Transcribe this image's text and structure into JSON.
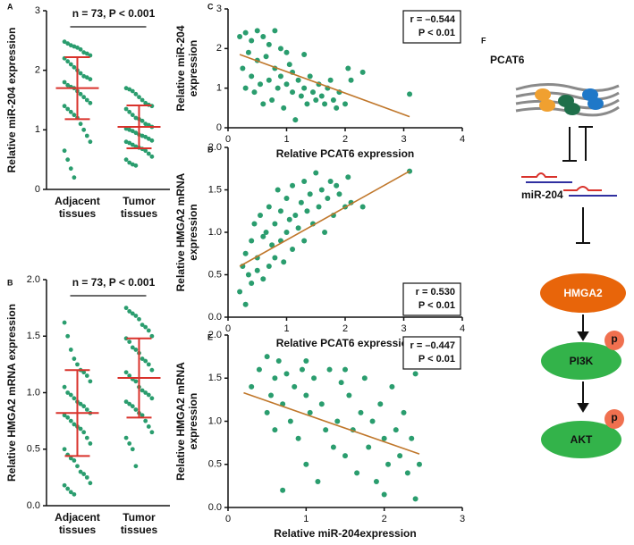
{
  "chart_data": [
    {
      "type": "strip",
      "panel_label": "A",
      "ylabel": [
        "Relative  miR-204 expression"
      ],
      "annotation": "n = 73, P < 0.001",
      "ylim": [
        0,
        3
      ],
      "yticks": [
        0,
        1,
        2,
        3
      ],
      "point_color": "#2a9d6e",
      "bar_color": "#d9322b",
      "categories": [
        "Adjacent tissues",
        "Tumor tissues"
      ],
      "series": [
        {
          "values": [
            2.48,
            2.45,
            2.42,
            2.4,
            2.38,
            2.35,
            2.3,
            2.28,
            2.25,
            2.2,
            2.15,
            2.1,
            2.05,
            2.0,
            1.95,
            1.9,
            1.88,
            1.85,
            1.8,
            1.75,
            1.72,
            1.7,
            1.65,
            1.6,
            1.55,
            1.5,
            1.45,
            1.4,
            1.35,
            1.3,
            1.25,
            1.2,
            1.1,
            1.0,
            0.9,
            0.8,
            0.65,
            0.5,
            0.35,
            0.2
          ],
          "mean": 1.7,
          "sd": 0.52
        },
        {
          "values": [
            1.7,
            1.68,
            1.65,
            1.6,
            1.55,
            1.5,
            1.45,
            1.42,
            1.4,
            1.35,
            1.3,
            1.25,
            1.2,
            1.18,
            1.15,
            1.1,
            1.08,
            1.05,
            1.02,
            1.0,
            0.98,
            0.95,
            0.92,
            0.9,
            0.88,
            0.85,
            0.82,
            0.8,
            0.78,
            0.75,
            0.72,
            0.7,
            0.68,
            0.65,
            0.6,
            0.55,
            0.5,
            0.45,
            0.42,
            0.4
          ],
          "mean": 1.05,
          "sd": 0.36
        }
      ]
    },
    {
      "type": "strip",
      "panel_label": "B",
      "ylabel": [
        "Relative  HMGA2 mRNA expression"
      ],
      "annotation": "n = 73, P < 0.001",
      "ylim": [
        0,
        2
      ],
      "yticks": [
        {
          "value": 0,
          "label": "0.0"
        },
        {
          "value": 0.5,
          "label": "0.5"
        },
        {
          "value": 1,
          "label": "1.0"
        },
        {
          "value": 1.5,
          "label": "1.5"
        },
        {
          "value": 2,
          "label": "2.0"
        }
      ],
      "point_color": "#2a9d6e",
      "bar_color": "#d9322b",
      "categories": [
        "Adjacent tissues",
        "Tumor tissues"
      ],
      "series": [
        {
          "values": [
            1.62,
            1.5,
            1.38,
            1.3,
            1.25,
            1.2,
            1.18,
            1.15,
            1.1,
            1.05,
            1.0,
            0.98,
            0.95,
            0.92,
            0.9,
            0.88,
            0.85,
            0.82,
            0.8,
            0.78,
            0.75,
            0.72,
            0.7,
            0.68,
            0.65,
            0.6,
            0.55,
            0.5,
            0.45,
            0.42,
            0.4,
            0.35,
            0.3,
            0.28,
            0.25,
            0.2,
            0.18,
            0.15,
            0.12,
            0.1
          ],
          "mean": 0.82,
          "sd": 0.38
        },
        {
          "values": [
            1.75,
            1.72,
            1.7,
            1.68,
            1.65,
            1.6,
            1.58,
            1.55,
            1.5,
            1.48,
            1.45,
            1.4,
            1.38,
            1.35,
            1.3,
            1.28,
            1.25,
            1.2,
            1.18,
            1.15,
            1.12,
            1.1,
            1.05,
            1.02,
            1.0,
            0.98,
            0.95,
            0.92,
            0.9,
            0.88,
            0.85,
            0.82,
            0.8,
            0.75,
            0.7,
            0.65,
            0.6,
            0.55,
            0.5,
            0.35
          ],
          "mean": 1.13,
          "sd": 0.35
        }
      ]
    },
    {
      "type": "scatter",
      "panel_label": "C",
      "ylabel": [
        "Relative  miR-204",
        "expression"
      ],
      "xlabel": "Relative  PCAT6 expression",
      "xlim": [
        0,
        4
      ],
      "xticks": [
        0,
        1,
        2,
        3,
        4
      ],
      "ylim": [
        0,
        3
      ],
      "yticks": [
        0,
        1,
        2,
        3
      ],
      "point_color": "#2a9d6e",
      "trend_color": "#c0772b",
      "stats": [
        "r = –0.544",
        "P < 0.01"
      ],
      "stats_corner": "upper right",
      "trend": {
        "x": [
          0.2,
          3.1
        ],
        "y": [
          1.85,
          0.28
        ]
      },
      "x": [
        0.2,
        0.25,
        0.3,
        0.3,
        0.35,
        0.4,
        0.4,
        0.45,
        0.5,
        0.5,
        0.55,
        0.6,
        0.6,
        0.65,
        0.7,
        0.7,
        0.75,
        0.8,
        0.8,
        0.85,
        0.9,
        0.9,
        0.95,
        1.0,
        1.0,
        1.05,
        1.1,
        1.1,
        1.15,
        1.2,
        1.25,
        1.3,
        1.3,
        1.35,
        1.4,
        1.45,
        1.5,
        1.55,
        1.6,
        1.65,
        1.7,
        1.75,
        1.8,
        1.85,
        1.9,
        2.0,
        2.05,
        2.1,
        2.3,
        3.1
      ],
      "values": [
        2.3,
        1.5,
        2.4,
        1.0,
        1.9,
        2.2,
        1.3,
        0.9,
        2.45,
        1.7,
        1.1,
        2.3,
        0.6,
        1.8,
        2.1,
        1.2,
        0.7,
        2.45,
        1.5,
        1.0,
        2.0,
        1.3,
        0.5,
        1.9,
        1.1,
        1.6,
        0.9,
        1.4,
        0.2,
        1.2,
        0.8,
        1.85,
        1.0,
        0.6,
        1.3,
        0.9,
        0.7,
        1.1,
        0.8,
        0.6,
        1.0,
        1.2,
        0.7,
        0.5,
        0.9,
        0.6,
        1.5,
        1.2,
        1.4,
        0.85
      ]
    },
    {
      "type": "scatter",
      "panel_label": "D",
      "ylabel": [
        "Relative  HMGA2 mRNA",
        "expression"
      ],
      "xlabel": "Relative  PCAT6 expression",
      "xlim": [
        0,
        4
      ],
      "xticks": [
        0,
        1,
        2,
        3,
        4
      ],
      "ylim": [
        0,
        2
      ],
      "yticks": [
        {
          "value": 0,
          "label": "0.0"
        },
        {
          "value": 0.5,
          "label": "0.5"
        },
        {
          "value": 1,
          "label": "1.0"
        },
        {
          "value": 1.5,
          "label": "1.5"
        },
        {
          "value": 2,
          "label": "2.0"
        }
      ],
      "point_color": "#2a9d6e",
      "trend_color": "#c0772b",
      "stats": [
        "r = 0.530",
        "P < 0.01"
      ],
      "stats_corner": "lower right",
      "trend": {
        "x": [
          0.2,
          3.1
        ],
        "y": [
          0.6,
          1.72
        ]
      },
      "x": [
        0.2,
        0.25,
        0.3,
        0.3,
        0.35,
        0.4,
        0.4,
        0.45,
        0.5,
        0.5,
        0.55,
        0.6,
        0.6,
        0.65,
        0.7,
        0.7,
        0.75,
        0.8,
        0.8,
        0.85,
        0.9,
        0.9,
        0.95,
        1.0,
        1.0,
        1.05,
        1.1,
        1.1,
        1.15,
        1.2,
        1.25,
        1.3,
        1.3,
        1.35,
        1.4,
        1.45,
        1.5,
        1.55,
        1.6,
        1.65,
        1.7,
        1.75,
        1.8,
        1.85,
        1.9,
        2.0,
        2.05,
        2.1,
        2.3,
        3.1
      ],
      "values": [
        0.3,
        0.6,
        0.15,
        0.75,
        0.5,
        0.9,
        0.4,
        1.1,
        0.55,
        0.7,
        1.2,
        0.45,
        0.95,
        1.0,
        0.6,
        1.3,
        0.85,
        0.7,
        1.1,
        1.5,
        0.9,
        1.25,
        0.65,
        1.0,
        1.4,
        1.15,
        0.8,
        1.55,
        1.2,
        1.05,
        1.35,
        0.9,
        1.6,
        1.25,
        1.45,
        1.1,
        1.7,
        1.3,
        1.5,
        1.0,
        1.4,
        1.6,
        1.2,
        1.55,
        1.45,
        1.3,
        1.65,
        1.35,
        1.3,
        1.72
      ]
    },
    {
      "type": "scatter",
      "panel_label": "E",
      "ylabel": [
        "Relative  HMGA2 mRNA",
        "expression"
      ],
      "xlabel": "Relative miR-204expression",
      "xlim": [
        0,
        3
      ],
      "xticks": [
        0,
        1,
        2,
        3
      ],
      "ylim": [
        0,
        2
      ],
      "yticks": [
        {
          "value": 0,
          "label": "0.0"
        },
        {
          "value": 0.5,
          "label": "0.5"
        },
        {
          "value": 1,
          "label": "1.0"
        },
        {
          "value": 1.5,
          "label": "1.5"
        },
        {
          "value": 2,
          "label": "2.0"
        }
      ],
      "point_color": "#2a9d6e",
      "trend_color": "#c0772b",
      "stats": [
        "r = –0.447",
        "P < 0.01"
      ],
      "stats_corner": "upper right",
      "trend": {
        "x": [
          0.2,
          2.45
        ],
        "y": [
          1.33,
          0.62
        ]
      },
      "x": [
        0.3,
        0.4,
        0.5,
        0.5,
        0.55,
        0.6,
        0.6,
        0.65,
        0.7,
        0.75,
        0.8,
        0.85,
        0.9,
        0.95,
        1.0,
        1.0,
        1.05,
        1.1,
        1.15,
        1.2,
        1.25,
        1.3,
        1.35,
        1.4,
        1.45,
        1.5,
        1.55,
        1.6,
        1.65,
        1.7,
        1.75,
        1.8,
        1.85,
        1.9,
        1.95,
        2.0,
        2.05,
        2.1,
        2.15,
        2.2,
        2.25,
        2.3,
        2.35,
        2.4,
        2.45,
        0.7,
        1.0,
        1.5,
        2.0,
        2.4
      ],
      "values": [
        1.4,
        1.6,
        1.75,
        1.1,
        1.3,
        1.5,
        0.9,
        1.7,
        1.2,
        1.55,
        1.0,
        1.4,
        0.8,
        1.6,
        1.3,
        0.5,
        1.1,
        1.5,
        0.3,
        1.2,
        0.9,
        1.6,
        0.7,
        1.0,
        1.45,
        0.6,
        1.3,
        0.9,
        0.4,
        1.1,
        1.5,
        0.7,
        1.0,
        0.3,
        1.2,
        0.8,
        0.5,
        1.4,
        0.9,
        0.6,
        1.1,
        0.4,
        0.8,
        1.55,
        0.5,
        0.2,
        1.7,
        1.6,
        0.15,
        0.1
      ]
    }
  ],
  "diagram": {
    "panel_label": "F",
    "gene": "PCAT6",
    "mirna": "miR-204",
    "nodes": [
      {
        "label": "HMGA2"
      },
      {
        "label": "PI3K",
        "badge": "p"
      },
      {
        "label": "AKT",
        "badge": "p"
      }
    ]
  }
}
